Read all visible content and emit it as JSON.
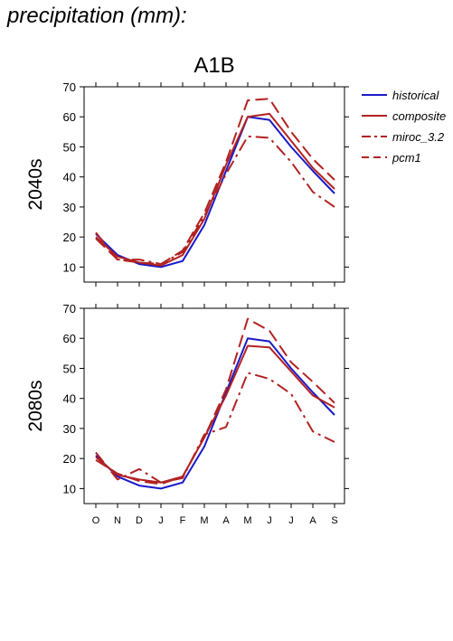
{
  "page": {
    "heading": "precipitation (mm):"
  },
  "chart_data": {
    "type": "line",
    "title": "A1B",
    "months": [
      "O",
      "N",
      "D",
      "J",
      "F",
      "M",
      "A",
      "M",
      "J",
      "J",
      "A",
      "S"
    ],
    "ylim": [
      5,
      70
    ],
    "yticks": [
      10,
      20,
      30,
      40,
      50,
      60,
      70
    ],
    "grid": false,
    "legend_position": "top-right, outside plot",
    "legend": [
      {
        "name": "historical",
        "color": "#1a1ac8",
        "dash": "solid"
      },
      {
        "name": "composite",
        "color": "#b22222",
        "dash": "solid"
      },
      {
        "name": "miroc_3.2",
        "color": "#b22222",
        "dash": "dashdot"
      },
      {
        "name": "pcm1",
        "color": "#b22222",
        "dash": "dashed"
      }
    ],
    "panels": [
      {
        "ylabel": "2040s",
        "series": [
          {
            "name": "historical",
            "values": [
              21,
              14,
              11,
              10,
              12,
              24,
              42,
              60,
              59,
              50,
              42,
              34.5
            ]
          },
          {
            "name": "composite",
            "values": [
              20,
              13.5,
              11.5,
              10.5,
              14,
              26,
              44,
              60,
              61,
              52,
              43,
              36
            ]
          },
          {
            "name": "miroc_3.2",
            "values": [
              21.5,
              12.5,
              12.5,
              11,
              15,
              27,
              41,
              53.5,
              53,
              45,
              35,
              30
            ]
          },
          {
            "name": "pcm1",
            "values": [
              19.5,
              12.5,
              11.5,
              11,
              15.5,
              28,
              45,
              65.5,
              66,
              55,
              46,
              39
            ]
          }
        ]
      },
      {
        "ylabel": "2080s",
        "series": [
          {
            "name": "historical",
            "values": [
              21,
              14,
              11,
              10,
              12,
              24,
              42,
              60,
              59,
              50,
              42,
              34.5
            ]
          },
          {
            "name": "composite",
            "values": [
              20.5,
              14.5,
              13,
              12,
              14,
              27,
              41,
              57.5,
              57,
              49,
              41,
              37
            ]
          },
          {
            "name": "miroc_3.2",
            "values": [
              22,
              13,
              16.5,
              12,
              13.5,
              28,
              30.5,
              48.5,
              46.5,
              41.5,
              29,
              25.5
            ]
          },
          {
            "name": "pcm1",
            "values": [
              19.5,
              15,
              12.5,
              11.5,
              14,
              27,
              43,
              66.5,
              62.5,
              52,
              45.5,
              38.5
            ]
          }
        ]
      }
    ]
  }
}
